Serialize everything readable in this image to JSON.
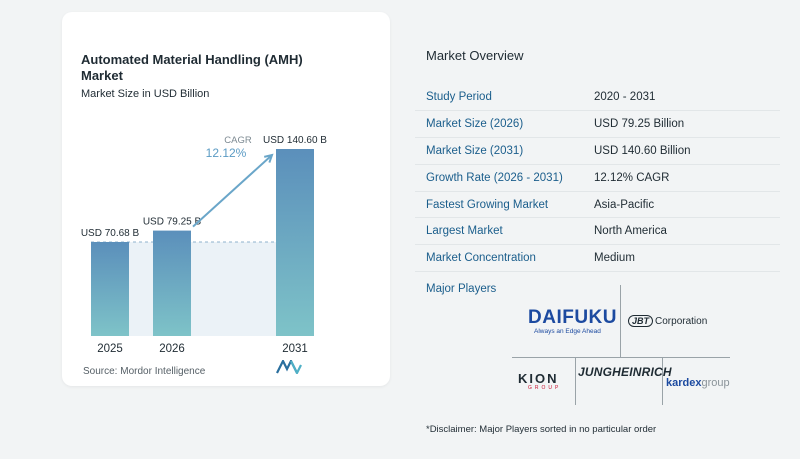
{
  "chart_data": {
    "type": "bar",
    "title": "Automated Material Handling (AMH) Market",
    "subtitle": "Market Size in USD Billion",
    "categories": [
      "2025",
      "2026",
      "2031"
    ],
    "values": [
      70.68,
      79.25,
      140.6
    ],
    "value_labels": [
      "USD 70.68 B",
      "USD 79.25 B",
      "USD 140.60 B"
    ],
    "cagr_label": "CAGR",
    "cagr_value": "12.12%",
    "colors": {
      "bar_top": "#5b8fbb",
      "bar_bottom": "#7ec3c8",
      "band": "#dde9f1",
      "arrow": "#6aa6c9"
    }
  },
  "source": "Source:  Mordor Intelligence",
  "overview": {
    "title": "Market Overview",
    "rows": [
      {
        "key": "Study Period",
        "value": "2020 - 2031"
      },
      {
        "key": "Market Size (2026)",
        "value": "USD 79.25 Billion"
      },
      {
        "key": "Market Size (2031)",
        "value": "USD 140.60 Billion"
      },
      {
        "key": "Growth Rate (2026 - 2031)",
        "value": "12.12% CAGR"
      },
      {
        "key": "Fastest Growing Market",
        "value": "Asia-Pacific"
      },
      {
        "key": "Largest Market",
        "value": "North America"
      },
      {
        "key": "Market Concentration",
        "value": "Medium"
      }
    ],
    "players_label": "Major Players",
    "players": {
      "daifuku": "DAIFUKU",
      "daifuku_tagline": "Always an Edge Ahead",
      "jbt_badge": "JBT",
      "jbt_word": "Corporation",
      "kion": "KION",
      "kion_sub": "GROUP",
      "jungheinrich": "JUNGHEINRICH",
      "kardex_a": "kardex",
      "kardex_b": "group"
    },
    "disclaimer": "*Disclaimer: Major Players sorted in no particular order"
  }
}
